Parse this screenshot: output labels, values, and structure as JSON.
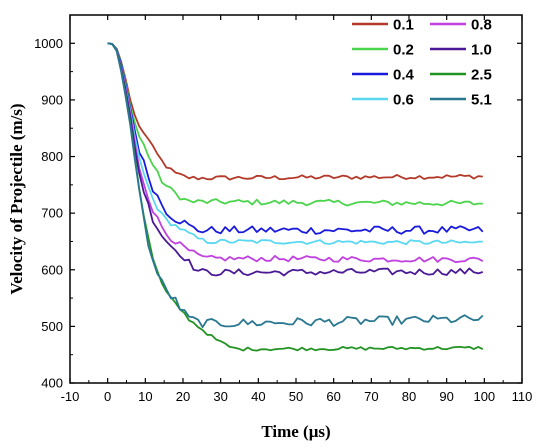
{
  "chart_data": {
    "type": "line",
    "xlabel": "Time (μs)",
    "ylabel": "Velocity of  Projectile (m/s)",
    "xlim": [
      -10,
      110
    ],
    "ylim": [
      400,
      1050
    ],
    "xticks": [
      -10,
      0,
      10,
      20,
      30,
      40,
      50,
      60,
      70,
      80,
      90,
      100,
      110
    ],
    "yticks": [
      400,
      500,
      600,
      700,
      800,
      900,
      1000
    ],
    "legend_position": "top-right",
    "grid": false,
    "series": [
      {
        "name": "0.1",
        "color": "#b33a2a",
        "x": [
          0,
          2,
          4,
          6,
          8,
          10,
          12,
          14,
          16,
          18,
          20,
          22,
          24,
          100
        ],
        "y": [
          1000,
          998,
          960,
          900,
          855,
          840,
          815,
          795,
          780,
          770,
          765,
          762,
          762,
          765
        ],
        "plateau": 762,
        "noise": 4
      },
      {
        "name": "0.2",
        "color": "#4cd44c",
        "x": [
          0,
          2,
          4,
          6,
          8,
          10,
          12,
          14,
          16,
          18,
          20,
          22,
          24,
          100
        ],
        "y": [
          1000,
          998,
          958,
          890,
          840,
          815,
          785,
          760,
          745,
          735,
          725,
          720,
          720,
          717
        ],
        "plateau": 720,
        "noise": 5
      },
      {
        "name": "0.4",
        "color": "#1a1adc",
        "x": [
          0,
          2,
          4,
          6,
          8,
          10,
          12,
          14,
          16,
          18,
          20,
          22,
          24,
          100
        ],
        "y": [
          1000,
          998,
          955,
          885,
          820,
          780,
          745,
          720,
          700,
          690,
          685,
          675,
          670,
          670
        ],
        "plateau": 672,
        "noise": 7
      },
      {
        "name": "0.6",
        "color": "#5ad8f0",
        "x": [
          0,
          2,
          4,
          6,
          8,
          10,
          12,
          14,
          16,
          18,
          20,
          22,
          24,
          26,
          100
        ],
        "y": [
          1000,
          998,
          950,
          880,
          805,
          760,
          725,
          700,
          685,
          678,
          670,
          662,
          655,
          650,
          648
        ],
        "plateau": 649,
        "noise": 4
      },
      {
        "name": "0.8",
        "color": "#c040e0",
        "x": [
          0,
          2,
          4,
          6,
          8,
          10,
          12,
          14,
          16,
          18,
          20,
          22,
          24,
          26,
          100
        ],
        "y": [
          1000,
          998,
          948,
          875,
          790,
          745,
          705,
          680,
          660,
          650,
          640,
          632,
          625,
          620,
          618
        ],
        "plateau": 619,
        "noise": 5
      },
      {
        "name": "1.0",
        "color": "#4a1a96",
        "x": [
          0,
          2,
          4,
          6,
          8,
          10,
          12,
          14,
          16,
          18,
          20,
          22,
          24,
          26,
          100
        ],
        "y": [
          1000,
          998,
          945,
          870,
          780,
          730,
          690,
          665,
          648,
          635,
          625,
          610,
          598,
          595,
          597
        ],
        "plateau": 595,
        "noise": 6
      },
      {
        "name": "2.5",
        "color": "#239423",
        "x": [
          0,
          2,
          4,
          6,
          8,
          10,
          12,
          14,
          16,
          18,
          20,
          22,
          24,
          26,
          28,
          30,
          32,
          34,
          100
        ],
        "y": [
          1000,
          998,
          940,
          860,
          760,
          680,
          620,
          580,
          555,
          540,
          525,
          510,
          500,
          490,
          480,
          472,
          465,
          460,
          462
        ],
        "plateau": 461,
        "noise": 3
      },
      {
        "name": "5.1",
        "color": "#2a7890",
        "x": [
          0,
          2,
          4,
          6,
          8,
          10,
          12,
          14,
          16,
          18,
          20,
          22,
          24,
          26,
          28,
          100
        ],
        "y": [
          1000,
          998,
          938,
          855,
          755,
          670,
          615,
          580,
          560,
          545,
          525,
          512,
          508,
          505,
          505,
          513
        ],
        "plateau": 507,
        "noise": 8
      }
    ]
  }
}
